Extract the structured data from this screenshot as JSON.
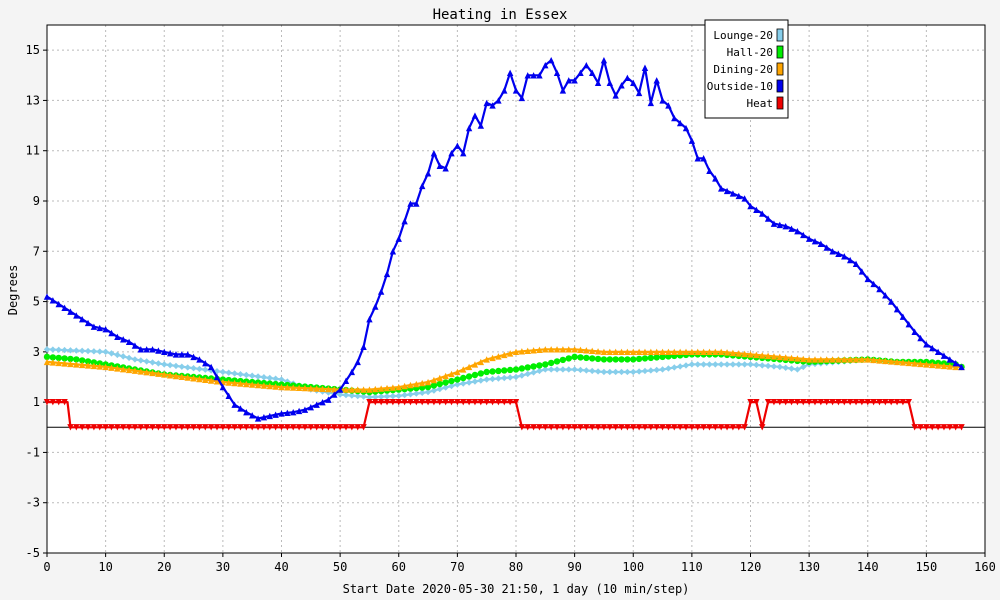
{
  "chart_data": {
    "type": "line",
    "title": "Heating in Essex",
    "xlabel": "Start Date 2020-05-30 21:50, 1 day (10 min/step)",
    "ylabel": "Degrees",
    "xlim": [
      0,
      160
    ],
    "ylim": [
      -5,
      16
    ],
    "x_ticks": [
      0,
      10,
      20,
      30,
      40,
      50,
      60,
      70,
      80,
      90,
      100,
      110,
      120,
      130,
      140,
      150,
      160
    ],
    "y_ticks": [
      -5,
      -3,
      -1,
      1,
      3,
      5,
      7,
      9,
      11,
      13,
      15
    ],
    "grid": true,
    "legend_position": "top-right",
    "series": [
      {
        "name": "Lounge-20",
        "color": "#87ceeb",
        "marker": "diamond",
        "points": [
          [
            0,
            3.1
          ],
          [
            10,
            3.0
          ],
          [
            15,
            2.7
          ],
          [
            20,
            2.5
          ],
          [
            30,
            2.2
          ],
          [
            40,
            1.9
          ],
          [
            45,
            1.5
          ],
          [
            50,
            1.3
          ],
          [
            55,
            1.2
          ],
          [
            60,
            1.25
          ],
          [
            65,
            1.4
          ],
          [
            70,
            1.7
          ],
          [
            75,
            1.9
          ],
          [
            80,
            2.0
          ],
          [
            85,
            2.3
          ],
          [
            90,
            2.3
          ],
          [
            95,
            2.2
          ],
          [
            100,
            2.2
          ],
          [
            105,
            2.3
          ],
          [
            110,
            2.5
          ],
          [
            115,
            2.5
          ],
          [
            120,
            2.5
          ],
          [
            125,
            2.4
          ],
          [
            128,
            2.3
          ],
          [
            130,
            2.5
          ],
          [
            135,
            2.6
          ],
          [
            140,
            2.7
          ],
          [
            145,
            2.6
          ],
          [
            150,
            2.5
          ],
          [
            155,
            2.4
          ],
          [
            156,
            2.4
          ]
        ]
      },
      {
        "name": "Hall-20",
        "color": "#00ee00",
        "marker": "circle",
        "points": [
          [
            0,
            2.8
          ],
          [
            5,
            2.7
          ],
          [
            10,
            2.5
          ],
          [
            20,
            2.1
          ],
          [
            30,
            1.9
          ],
          [
            40,
            1.7
          ],
          [
            50,
            1.5
          ],
          [
            55,
            1.4
          ],
          [
            60,
            1.5
          ],
          [
            65,
            1.6
          ],
          [
            70,
            1.9
          ],
          [
            75,
            2.2
          ],
          [
            80,
            2.3
          ],
          [
            85,
            2.5
          ],
          [
            90,
            2.8
          ],
          [
            95,
            2.7
          ],
          [
            100,
            2.7
          ],
          [
            105,
            2.8
          ],
          [
            110,
            2.9
          ],
          [
            115,
            2.9
          ],
          [
            120,
            2.8
          ],
          [
            125,
            2.7
          ],
          [
            130,
            2.6
          ],
          [
            140,
            2.7
          ],
          [
            145,
            2.6
          ],
          [
            150,
            2.6
          ],
          [
            155,
            2.5
          ],
          [
            156,
            2.4
          ]
        ]
      },
      {
        "name": "Dining-20",
        "color": "#ffa500",
        "marker": "triangle",
        "points": [
          [
            0,
            2.6
          ],
          [
            10,
            2.4
          ],
          [
            20,
            2.1
          ],
          [
            30,
            1.8
          ],
          [
            40,
            1.6
          ],
          [
            50,
            1.5
          ],
          [
            55,
            1.5
          ],
          [
            60,
            1.6
          ],
          [
            65,
            1.8
          ],
          [
            70,
            2.2
          ],
          [
            75,
            2.7
          ],
          [
            80,
            3.0
          ],
          [
            85,
            3.1
          ],
          [
            90,
            3.1
          ],
          [
            95,
            3.0
          ],
          [
            100,
            3.0
          ],
          [
            105,
            3.0
          ],
          [
            110,
            3.0
          ],
          [
            115,
            3.0
          ],
          [
            120,
            2.9
          ],
          [
            125,
            2.8
          ],
          [
            130,
            2.7
          ],
          [
            135,
            2.7
          ],
          [
            140,
            2.7
          ],
          [
            145,
            2.6
          ],
          [
            150,
            2.5
          ],
          [
            155,
            2.4
          ],
          [
            156,
            2.4
          ]
        ]
      },
      {
        "name": "Outside-10",
        "color": "#0000ee",
        "marker": "triangle",
        "points": [
          [
            0,
            5.2
          ],
          [
            2,
            4.9
          ],
          [
            4,
            4.6
          ],
          [
            6,
            4.3
          ],
          [
            8,
            4.0
          ],
          [
            10,
            3.9
          ],
          [
            12,
            3.6
          ],
          [
            14,
            3.4
          ],
          [
            16,
            3.1
          ],
          [
            18,
            3.1
          ],
          [
            20,
            3.0
          ],
          [
            22,
            2.9
          ],
          [
            24,
            2.9
          ],
          [
            26,
            2.7
          ],
          [
            28,
            2.4
          ],
          [
            30,
            1.6
          ],
          [
            32,
            0.9
          ],
          [
            34,
            0.6
          ],
          [
            36,
            0.35
          ],
          [
            38,
            0.45
          ],
          [
            40,
            0.55
          ],
          [
            42,
            0.6
          ],
          [
            44,
            0.7
          ],
          [
            46,
            0.9
          ],
          [
            48,
            1.1
          ],
          [
            50,
            1.5
          ],
          [
            52,
            2.2
          ],
          [
            53,
            2.6
          ],
          [
            54,
            3.2
          ],
          [
            55,
            4.3
          ],
          [
            56,
            4.8
          ],
          [
            57,
            5.4
          ],
          [
            58,
            6.1
          ],
          [
            59,
            7.0
          ],
          [
            60,
            7.5
          ],
          [
            61,
            8.2
          ],
          [
            62,
            8.9
          ],
          [
            63,
            8.9
          ],
          [
            64,
            9.6
          ],
          [
            65,
            10.1
          ],
          [
            66,
            10.9
          ],
          [
            67,
            10.4
          ],
          [
            68,
            10.3
          ],
          [
            69,
            10.9
          ],
          [
            70,
            11.2
          ],
          [
            71,
            10.9
          ],
          [
            72,
            11.9
          ],
          [
            73,
            12.4
          ],
          [
            74,
            12.0
          ],
          [
            75,
            12.9
          ],
          [
            76,
            12.8
          ],
          [
            77,
            13.0
          ],
          [
            78,
            13.4
          ],
          [
            79,
            14.1
          ],
          [
            80,
            13.4
          ],
          [
            81,
            13.1
          ],
          [
            82,
            14.0
          ],
          [
            84,
            14.0
          ],
          [
            85,
            14.4
          ],
          [
            86,
            14.6
          ],
          [
            87,
            14.1
          ],
          [
            88,
            13.4
          ],
          [
            89,
            13.8
          ],
          [
            90,
            13.8
          ],
          [
            91,
            14.1
          ],
          [
            92,
            14.4
          ],
          [
            93,
            14.1
          ],
          [
            94,
            13.7
          ],
          [
            95,
            14.6
          ],
          [
            96,
            13.7
          ],
          [
            97,
            13.2
          ],
          [
            98,
            13.6
          ],
          [
            99,
            13.9
          ],
          [
            100,
            13.7
          ],
          [
            101,
            13.3
          ],
          [
            102,
            14.3
          ],
          [
            103,
            12.9
          ],
          [
            104,
            13.8
          ],
          [
            105,
            13.0
          ],
          [
            106,
            12.8
          ],
          [
            107,
            12.3
          ],
          [
            108,
            12.1
          ],
          [
            109,
            11.9
          ],
          [
            110,
            11.4
          ],
          [
            111,
            10.7
          ],
          [
            112,
            10.7
          ],
          [
            113,
            10.2
          ],
          [
            114,
            9.9
          ],
          [
            115,
            9.5
          ],
          [
            116,
            9.4
          ],
          [
            117,
            9.3
          ],
          [
            118,
            9.2
          ],
          [
            119,
            9.1
          ],
          [
            120,
            8.8
          ],
          [
            122,
            8.5
          ],
          [
            124,
            8.1
          ],
          [
            126,
            8.0
          ],
          [
            128,
            7.8
          ],
          [
            130,
            7.5
          ],
          [
            132,
            7.3
          ],
          [
            134,
            7.0
          ],
          [
            136,
            6.8
          ],
          [
            138,
            6.5
          ],
          [
            140,
            5.9
          ],
          [
            142,
            5.5
          ],
          [
            144,
            5.0
          ],
          [
            146,
            4.4
          ],
          [
            148,
            3.8
          ],
          [
            150,
            3.3
          ],
          [
            152,
            3.0
          ],
          [
            154,
            2.7
          ],
          [
            156,
            2.4
          ]
        ]
      },
      {
        "name": "Heat",
        "color": "#ee0000",
        "marker": "triangle-down",
        "points": [
          [
            0,
            1
          ],
          [
            3.5,
            1
          ],
          [
            4,
            0
          ],
          [
            54,
            0
          ],
          [
            55,
            1
          ],
          [
            80,
            1
          ],
          [
            81,
            0
          ],
          [
            119,
            0
          ],
          [
            120,
            1
          ],
          [
            121,
            1
          ],
          [
            122,
            0
          ],
          [
            123,
            1
          ],
          [
            147,
            1
          ],
          [
            148,
            0
          ],
          [
            156,
            0
          ]
        ]
      }
    ]
  }
}
